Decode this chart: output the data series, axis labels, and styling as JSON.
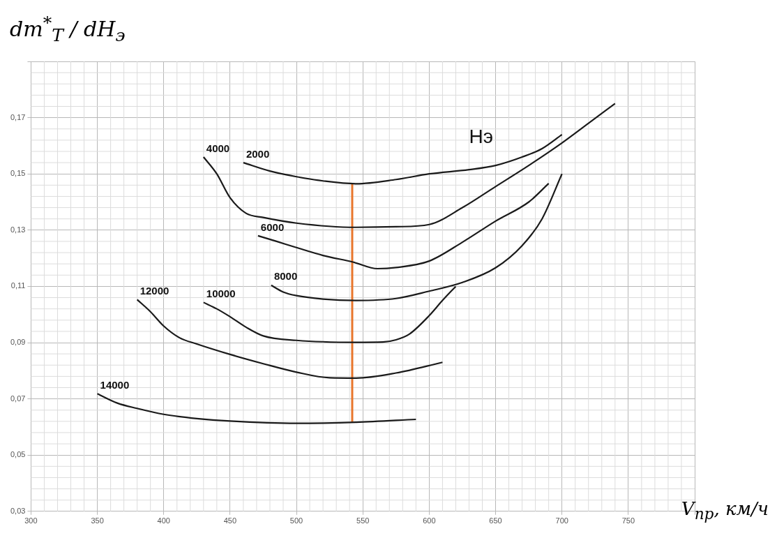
{
  "chart_data": {
    "type": "line",
    "ylabel": "dm$^{*}$$_{T}$ / dH$_{э}$",
    "xlabel": "V$_{пр}$, км/ч",
    "annotations": [
      "Нэ"
    ],
    "xlim": [
      300,
      800
    ],
    "xticks": [
      300,
      350,
      400,
      450,
      500,
      550,
      600,
      650,
      700,
      750,
      {
        "value": 800,
        "label": null
      }
    ],
    "ylim": [
      0.03,
      0.19
    ],
    "yticks": [
      {
        "value": 0.03,
        "label": "0,03"
      },
      {
        "value": 0.05,
        "label": "0,05"
      },
      {
        "value": 0.07,
        "label": "0,07"
      },
      {
        "value": 0.09,
        "label": "0,09"
      },
      {
        "value": 0.11,
        "label": "0,11"
      },
      {
        "value": 0.13,
        "label": "0,13"
      },
      {
        "value": 0.15,
        "label": "0,15"
      },
      {
        "value": 0.17,
        "label": "0,17"
      },
      {
        "value": 0.19,
        "label": null
      }
    ],
    "grid": true,
    "series": [
      {
        "name": "2000",
        "color": "#1a1a1a",
        "x": [
          460,
          480,
          500,
          520,
          545,
          575,
          600,
          630,
          650,
          670,
          685,
          700
        ],
        "values": [
          0.154,
          0.151,
          0.149,
          0.1475,
          0.1465,
          0.148,
          0.15,
          0.1515,
          0.153,
          0.156,
          0.159,
          0.164
        ]
      },
      {
        "name": "4000",
        "color": "#1a1a1a",
        "x": [
          430,
          440,
          450,
          462,
          475,
          500,
          545,
          575,
          600,
          625,
          650,
          675,
          700,
          720,
          740
        ],
        "values": [
          0.156,
          0.15,
          0.1415,
          0.136,
          0.1345,
          0.1325,
          0.131,
          0.1312,
          0.132,
          0.138,
          0.1455,
          0.153,
          0.161,
          0.168,
          0.175
        ]
      },
      {
        "name": "6000",
        "color": "#1a1a1a",
        "x": [
          471,
          485,
          500,
          520,
          543,
          561,
          575,
          600,
          625,
          650,
          675,
          690
        ],
        "values": [
          0.128,
          0.126,
          0.1238,
          0.121,
          0.1186,
          0.1163,
          0.1167,
          0.119,
          0.1257,
          0.1332,
          0.14,
          0.1466
        ]
      },
      {
        "name": "8000",
        "color": "#1a1a1a",
        "x": [
          481,
          490,
          500,
          520,
          545,
          575,
          600,
          625,
          650,
          670,
          685,
          700
        ],
        "values": [
          0.1104,
          0.108,
          0.1067,
          0.1055,
          0.105,
          0.1057,
          0.1083,
          0.1114,
          0.1166,
          0.1245,
          0.134,
          0.15
        ]
      },
      {
        "name": "10000",
        "color": "#1a1a1a",
        "x": [
          430,
          440,
          450,
          462,
          475,
          500,
          545,
          565,
          575,
          585,
          600,
          610,
          620
        ],
        "values": [
          0.1043,
          0.102,
          0.0992,
          0.0955,
          0.0924,
          0.0908,
          0.0901,
          0.0902,
          0.091,
          0.093,
          0.0996,
          0.105,
          0.11
        ]
      },
      {
        "name": "12000",
        "color": "#1a1a1a",
        "x": [
          380,
          390,
          400,
          412,
          425,
          450,
          475,
          500,
          525,
          545,
          575,
          610
        ],
        "values": [
          0.1053,
          0.101,
          0.0959,
          0.0917,
          0.0895,
          0.0858,
          0.0825,
          0.0795,
          0.0775,
          0.0774,
          0.0792,
          0.083
        ]
      },
      {
        "name": "14000",
        "color": "#1a1a1a",
        "x": [
          350,
          365,
          380,
          400,
          425,
          450,
          500,
          545,
          590
        ],
        "values": [
          0.0718,
          0.0685,
          0.0666,
          0.0645,
          0.063,
          0.0621,
          0.0613,
          0.0617,
          0.0627
        ]
      },
      {
        "color": "#e8762c",
        "x": [
          542,
          542
        ],
        "values": [
          0.0617,
          0.1465
        ]
      }
    ]
  }
}
